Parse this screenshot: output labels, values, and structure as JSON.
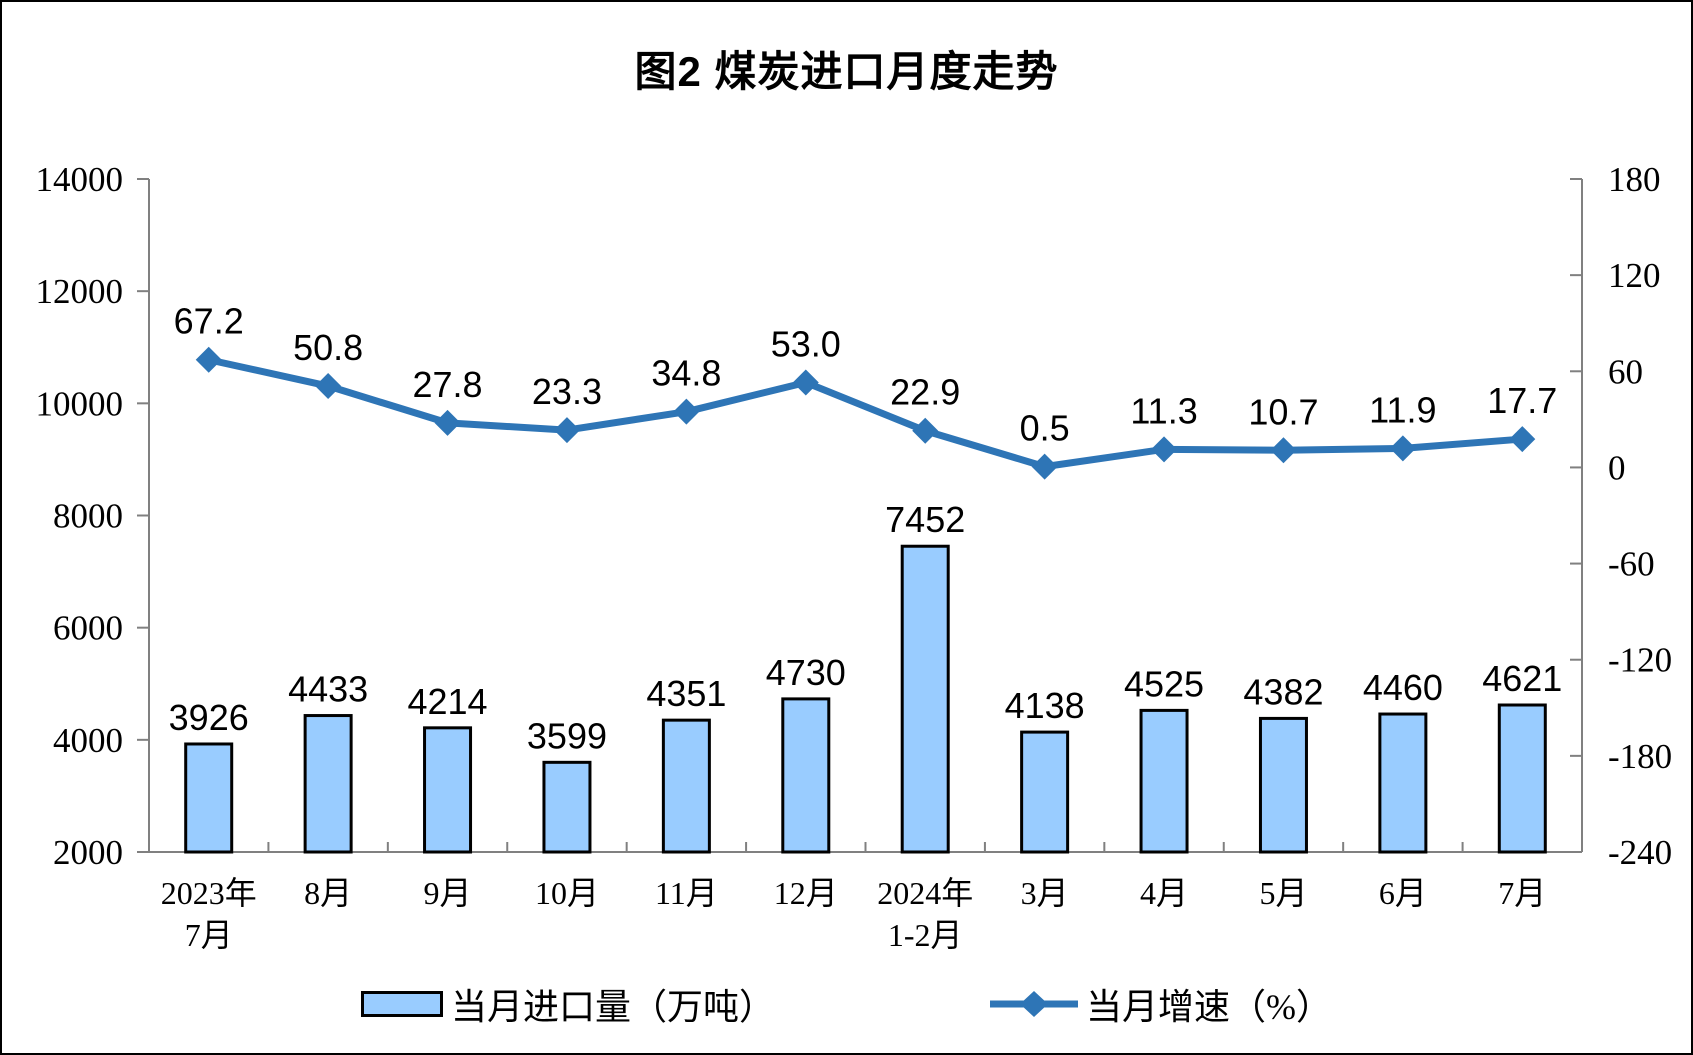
{
  "title": "图2 煤炭进口月度走势",
  "legend": {
    "bar_label": "当月进口量（万吨）",
    "line_label": "当月增速（%）"
  },
  "colors": {
    "background": "#FFFFFF",
    "frame_border": "#000000",
    "text_color": "#000000",
    "axis_color": "#808080",
    "bar_fill": "#99CCFF",
    "bar_border": "#000000",
    "line_color": "#2E75B6"
  },
  "chart_data": {
    "type": "bar+line",
    "title": "图2 煤炭进口月度走势",
    "categories": [
      "2023年\n7月",
      "8月",
      "9月",
      "10月",
      "11月",
      "12月",
      "2024年\n1-2月",
      "3月",
      "4月",
      "5月",
      "6月",
      "7月"
    ],
    "series": [
      {
        "name": "当月进口量（万吨）",
        "type": "bar",
        "axis": "left",
        "values": [
          3926,
          4433,
          4214,
          3599,
          4351,
          4730,
          7452,
          4138,
          4525,
          4382,
          4460,
          4621
        ],
        "label_decimals": 0
      },
      {
        "name": "当月增速（%）",
        "type": "line",
        "axis": "right",
        "marker": "diamond",
        "values": [
          67.2,
          50.8,
          27.8,
          23.3,
          34.8,
          53.0,
          22.9,
          0.5,
          11.3,
          10.7,
          11.9,
          17.7
        ],
        "label_decimals": 1
      }
    ],
    "left_axis": {
      "min": 2000,
      "max": 14000,
      "ticks": [
        2000,
        4000,
        6000,
        8000,
        10000,
        12000,
        14000
      ]
    },
    "right_axis": {
      "min": -240,
      "max": 180,
      "ticks": [
        -240,
        -180,
        -120,
        -60,
        0,
        60,
        120,
        180
      ]
    },
    "grid": false,
    "data_labels": true,
    "legend_position": "bottom"
  }
}
